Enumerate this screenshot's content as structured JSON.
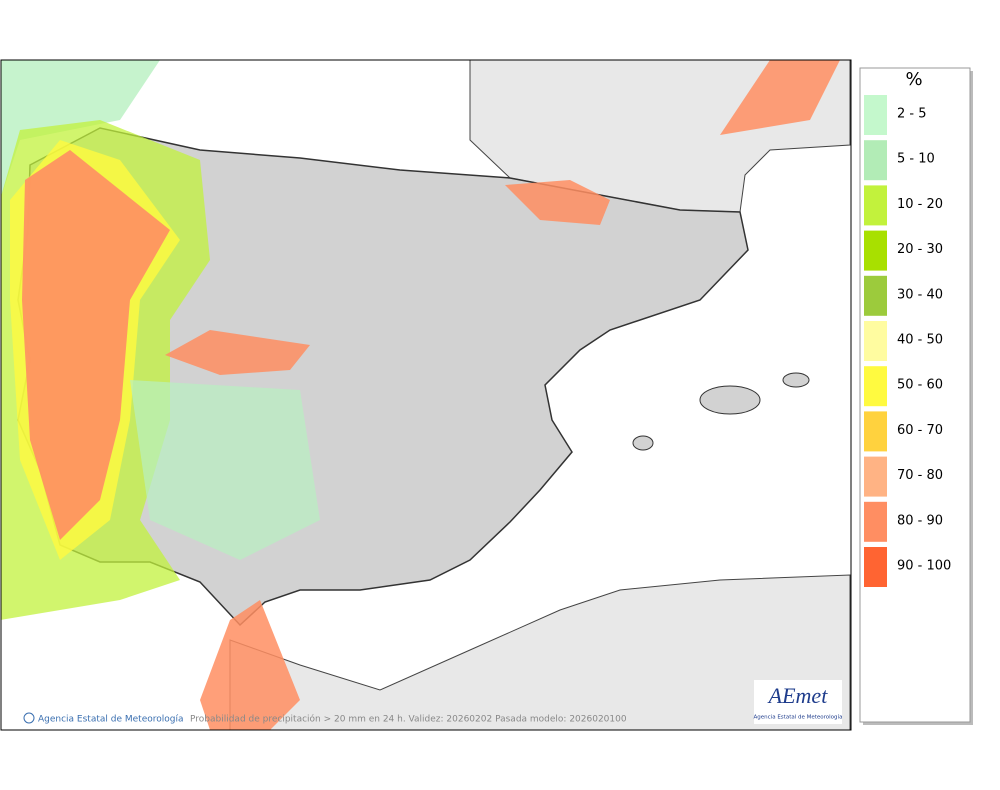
{
  "map": {
    "credit": "Agencia Estatal de Meteorología",
    "caption": "Probabilidad de precipitación > 20 mm en 24 h. Validez: 20260202 Pasada modelo: 2026020100"
  },
  "logo": {
    "name": "AEmet",
    "subtitle": "Agencia Estatal de Meteorología"
  },
  "legend": {
    "title": "%",
    "items": [
      {
        "label": "2 - 5",
        "color": "#c4f8cc"
      },
      {
        "label": "5 - 10",
        "color": "#b2ecb6"
      },
      {
        "label": "10 - 20",
        "color": "#c2f23c"
      },
      {
        "label": "20 - 30",
        "color": "#a8e000"
      },
      {
        "label": "30 - 40",
        "color": "#9ccb3c"
      },
      {
        "label": "40 - 50",
        "color": "#fffca0"
      },
      {
        "label": "50 - 60",
        "color": "#fffa40"
      },
      {
        "label": "60 - 70",
        "color": "#ffd23e"
      },
      {
        "label": "70 - 80",
        "color": "#ffb384"
      },
      {
        "label": "80 - 90",
        "color": "#ff8e62"
      },
      {
        "label": "90 - 100",
        "color": "#ff6432"
      }
    ]
  }
}
